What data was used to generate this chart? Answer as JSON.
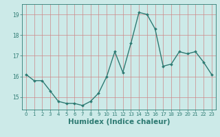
{
  "x": [
    0,
    1,
    2,
    3,
    4,
    5,
    6,
    7,
    8,
    9,
    10,
    11,
    12,
    13,
    14,
    15,
    16,
    17,
    18,
    19,
    20,
    21,
    22,
    23
  ],
  "y": [
    16.1,
    15.8,
    15.8,
    15.3,
    14.8,
    14.7,
    14.7,
    14.6,
    14.8,
    15.2,
    16.0,
    17.2,
    16.2,
    17.6,
    19.1,
    19.0,
    18.3,
    16.5,
    16.6,
    17.2,
    17.1,
    17.2,
    16.7,
    16.1
  ],
  "line_color": "#2d7a72",
  "marker": "D",
  "marker_size": 2.0,
  "line_width": 1.0,
  "xlabel": "Humidex (Indice chaleur)",
  "xlabel_fontsize": 7.5,
  "bg_color": "#cceae8",
  "grid_color": "#cc8888",
  "tick_color": "#2d7a72",
  "ylim": [
    14.4,
    19.5
  ],
  "yticks": [
    15,
    16,
    17,
    18,
    19
  ],
  "xlim": [
    -0.5,
    23.5
  ],
  "xticks": [
    0,
    1,
    2,
    3,
    4,
    5,
    6,
    7,
    8,
    9,
    10,
    11,
    12,
    13,
    14,
    15,
    16,
    17,
    18,
    19,
    20,
    21,
    22,
    23
  ]
}
